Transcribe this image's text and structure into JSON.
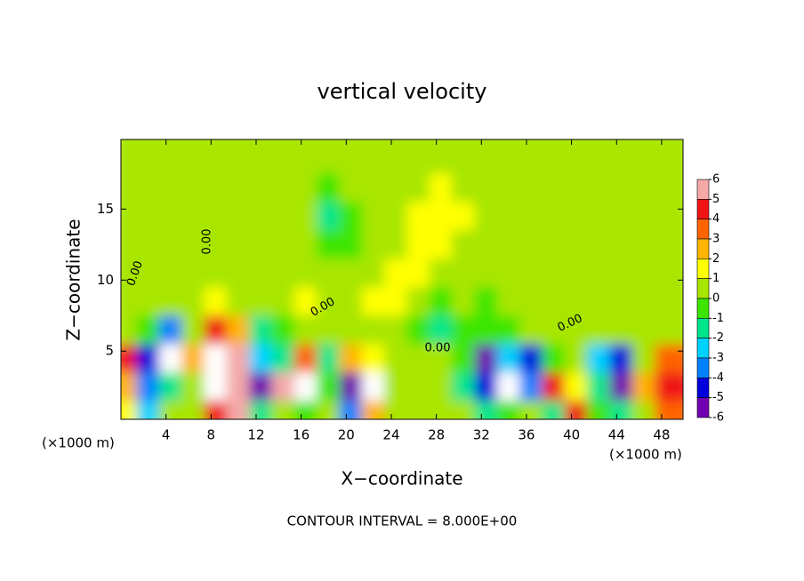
{
  "chart_data": {
    "type": "heatmap",
    "title": "vertical velocity",
    "x_label": "X−coordinate",
    "y_label": "Z−coordinate",
    "x_unit_labels": [
      "(×1000 m)",
      "(×1000 m)"
    ],
    "footnote": "CONTOUR INTERVAL = 8.000E+00",
    "contour_labels": [
      "0.00",
      "0.00",
      "0.00",
      "0.00",
      "0.00"
    ],
    "x": [
      1,
      3,
      5,
      7,
      9,
      11,
      13,
      15,
      17,
      19,
      21,
      23,
      25,
      27,
      29,
      31,
      33,
      35,
      37,
      39,
      41,
      43,
      45,
      47,
      49
    ],
    "y": [
      1,
      3,
      5,
      7,
      9,
      11,
      13,
      15,
      17,
      19
    ],
    "values": [
      [
        1,
        -3,
        0.5,
        0,
        4,
        5,
        -2,
        0,
        -1,
        0,
        -4,
        2,
        0,
        0,
        0.5,
        0,
        -2,
        -1,
        0,
        -2,
        4,
        -1,
        -2,
        0,
        3
      ],
      [
        2,
        -4,
        -2,
        0,
        8,
        6,
        -6,
        5,
        8,
        -1,
        -6,
        8,
        0,
        0.5,
        0,
        -2,
        -5,
        8,
        -4,
        4,
        1,
        -2,
        -6,
        2,
        4
      ],
      [
        4,
        -5,
        8,
        2,
        8,
        5,
        -3,
        -2,
        3,
        -2,
        2,
        1,
        0,
        0,
        0,
        -1,
        -6,
        -3,
        -5,
        -1,
        0,
        -3,
        -5,
        0,
        3
      ],
      [
        0,
        -1,
        -4,
        0,
        4,
        2,
        -2,
        -1,
        0,
        0,
        0,
        0.5,
        0,
        -1,
        -2,
        -1,
        -1,
        -1,
        0,
        0.5,
        0,
        0,
        0,
        0,
        0
      ],
      [
        0.5,
        0,
        0,
        0.5,
        1,
        0.5,
        0,
        0.5,
        1,
        0.5,
        0.5,
        1,
        1,
        0,
        -0.5,
        0,
        -0.5,
        0,
        0.5,
        0,
        0,
        0.5,
        0,
        0,
        0
      ],
      [
        0.5,
        0.5,
        0,
        0.5,
        0.5,
        0.5,
        0.5,
        0.5,
        0.5,
        0.5,
        0.5,
        0.5,
        1,
        1,
        0.5,
        0.5,
        0,
        0.5,
        0.5,
        0.5,
        0.5,
        0.5,
        0.5,
        0.5,
        0.5
      ],
      [
        0.5,
        0.5,
        0.5,
        0.5,
        0.5,
        0.5,
        0.5,
        0.5,
        0.5,
        -0.5,
        -1,
        0.5,
        0.5,
        1,
        1,
        0.5,
        0.5,
        0.5,
        0.5,
        0.5,
        0.5,
        0.5,
        0.5,
        0.5,
        0.5
      ],
      [
        0.5,
        0.5,
        0.5,
        0.5,
        0.5,
        0.5,
        0.5,
        0.5,
        0.5,
        -1.5,
        -1,
        0.5,
        0.5,
        1,
        1.5,
        1,
        0.5,
        0.5,
        0.5,
        0.5,
        0.5,
        0.5,
        0.5,
        0.5,
        0.5
      ],
      [
        0.5,
        0.5,
        0.5,
        0.5,
        0.5,
        0.5,
        0.5,
        0.5,
        0.5,
        -0.5,
        0.5,
        0.5,
        0.5,
        0.5,
        1,
        0.5,
        0.5,
        0.5,
        0.5,
        0.5,
        0.5,
        0.5,
        0.5,
        0.5,
        0.5
      ],
      [
        0.5,
        0.5,
        0.5,
        0.5,
        0.5,
        0.5,
        0.5,
        0.5,
        0.5,
        0.5,
        0.5,
        0.5,
        0.5,
        0.5,
        0.5,
        0.5,
        0.5,
        0.5,
        0.5,
        0.5,
        0.5,
        0.5,
        0.5,
        0.5,
        0.5
      ]
    ],
    "xlim": [
      0,
      49.9
    ],
    "ylim": [
      0.2,
      19.9
    ],
    "xticks": [
      4,
      8,
      12,
      16,
      20,
      24,
      28,
      32,
      36,
      40,
      44,
      48
    ],
    "yticks": [
      5,
      10,
      15
    ],
    "colorbar": {
      "ticks": [
        6,
        5,
        4,
        3,
        2,
        1,
        0,
        -1,
        -2,
        -3,
        -4,
        -5,
        -6
      ],
      "colors": [
        "#f4a8a8",
        "#f01414",
        "#ff6400",
        "#ffb400",
        "#ffff00",
        "#a8e600",
        "#3ce600",
        "#00e68c",
        "#00d2ff",
        "#0082ff",
        "#0000dc",
        "#7000b0"
      ],
      "over_color": "#ffffff"
    }
  }
}
